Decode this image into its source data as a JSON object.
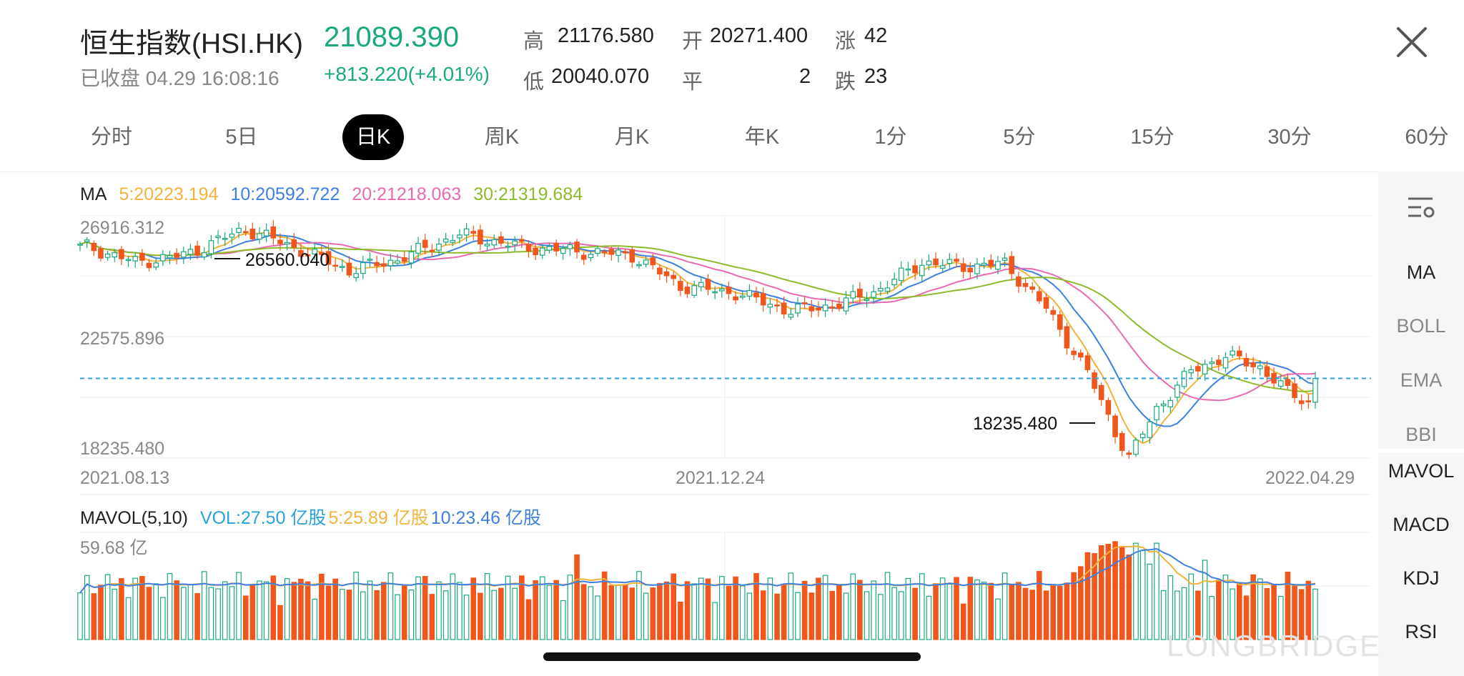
{
  "header": {
    "title": "恒生指数(HSI.HK)",
    "price": "21089.390",
    "status": "已收盘 04.29 16:08:16",
    "change": "+813.220(+4.01%)",
    "stats": {
      "high_label": "高",
      "high": "21176.580",
      "open_label": "开",
      "open": "20271.400",
      "up_label": "涨",
      "up": "42",
      "low_label": "低",
      "low": "20040.070",
      "flat_label": "平",
      "flat": "2",
      "down_label": "跌",
      "down": "23"
    }
  },
  "tabs": [
    "分时",
    "5日",
    "日K",
    "周K",
    "月K",
    "年K",
    "1分",
    "5分",
    "15分",
    "30分",
    "60分"
  ],
  "active_tab": 2,
  "ma_legend": {
    "label": "MA",
    "ma5": "5:20223.194",
    "ma10": "10:20592.722",
    "ma20": "20:21218.063",
    "ma30": "30:21319.684"
  },
  "price_axis": {
    "top": "26916.312",
    "mid": "22575.896",
    "bottom": "18235.480"
  },
  "markers": {
    "high": "26560.040",
    "low": "18235.480"
  },
  "dates": {
    "start": "2021.08.13",
    "mid": "2021.12.24",
    "end": "2022.04.29"
  },
  "mavol_legend": {
    "label": "MAVOL(5,10)",
    "vol": "VOL:27.50 亿股",
    "ma5": "5:25.89 亿股",
    "ma10": "10:23.46 亿股"
  },
  "vol_axis": {
    "top": "59.68 亿"
  },
  "side_items": [
    "MA",
    "BOLL",
    "EMA",
    "BBI",
    "MAVOL",
    "MACD",
    "KDJ",
    "RSI"
  ],
  "side_active": [
    "MA",
    "MAVOL",
    "MACD",
    "KDJ",
    "RSI"
  ],
  "watermark": "LONGBRIDGE",
  "colors": {
    "up": "#19a880",
    "down": "#f0571c",
    "ma5": "#f2b33d",
    "ma10": "#3e7fe0",
    "ma20": "#e86ab0",
    "ma30": "#8dbb2b",
    "current_line": "#29a3d9"
  },
  "chart_data": {
    "type": "candlestick",
    "title": "恒生指数(HSI.HK)",
    "x_range": [
      "2021.08.13",
      "2022.04.29"
    ],
    "ylim": [
      18235.48,
      26916.312
    ],
    "marked_high": 26560.04,
    "marked_low": 18235.48,
    "last_close": 21089.39,
    "ma": {
      "5": 20223.194,
      "10": 20592.722,
      "20": 21218.063,
      "30": 21319.684
    },
    "volume_top": "59.68 亿",
    "last_volume": {
      "vol": 27.5,
      "ma5": 25.89,
      "ma10": 23.46,
      "unit": "亿股"
    }
  }
}
